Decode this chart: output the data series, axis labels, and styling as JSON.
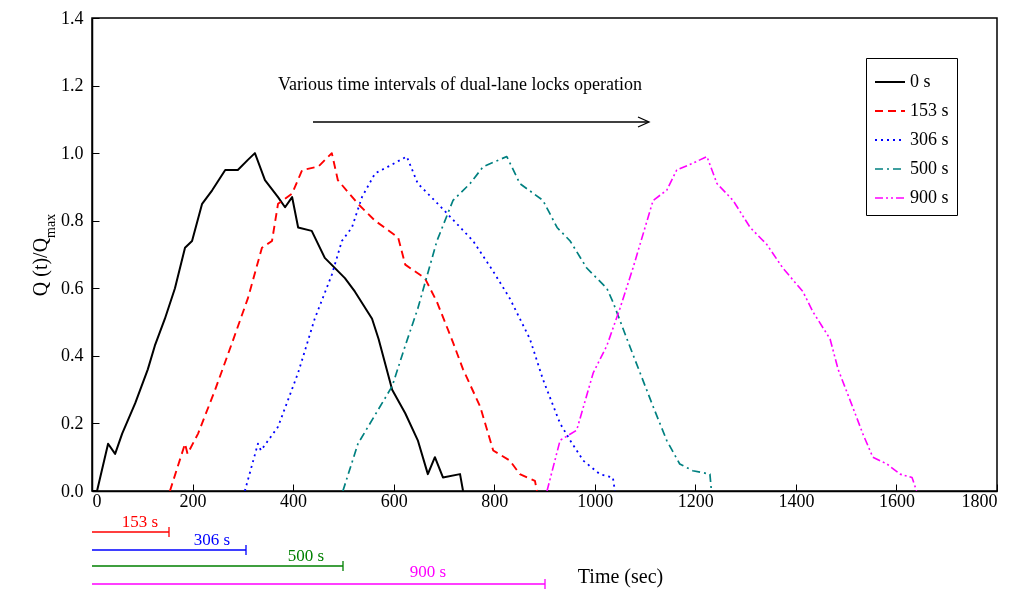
{
  "chart_data": {
    "type": "line",
    "xlabel": "Time (sec)",
    "ylabel": "Q (t)/Q$_{max}$",
    "xlim": [
      0,
      1800
    ],
    "xticks": [
      0,
      200,
      400,
      600,
      800,
      1000,
      1200,
      1400,
      1600,
      1800
    ],
    "ylim": [
      0,
      1.4
    ],
    "yticks": [
      {
        "value": 0,
        "label": "0.0"
      },
      0.2,
      0.4,
      0.6,
      0.8,
      {
        "value": 1,
        "label": "1.0"
      },
      1.2,
      1.4
    ],
    "legend": "top right",
    "annotations": [
      "Various time intervals of dual-lane locks operation",
      "153 s",
      "306 s",
      "500 s",
      "900 s"
    ],
    "series": [
      {
        "name": "0 s",
        "color": "#000000",
        "line_style": "solid",
        "x": [
          0,
          10,
          32,
          46,
          60,
          86,
          111,
          125,
          145,
          165,
          185,
          199,
          219,
          239,
          265,
          290,
          310,
          324,
          344,
          370,
          384,
          398,
          410,
          437,
          463,
          503,
          523,
          557,
          570,
          597,
          623,
          648,
          668,
          682,
          698,
          732,
          738
        ],
        "values": [
          0,
          0,
          0.14,
          0.11,
          0.17,
          0.26,
          0.36,
          0.43,
          0.51,
          0.6,
          0.72,
          0.74,
          0.85,
          0.89,
          0.95,
          0.95,
          0.98,
          1.0,
          0.92,
          0.87,
          0.84,
          0.87,
          0.78,
          0.77,
          0.69,
          0.63,
          0.59,
          0.51,
          0.45,
          0.3,
          0.23,
          0.15,
          0.05,
          0.1,
          0.04,
          0.05,
          0
        ]
      },
      {
        "name": "153 s",
        "color": "#ff0000",
        "line_style": "dashed",
        "x": [
          155,
          185,
          190,
          211,
          245,
          279,
          310,
          338,
          358,
          370,
          398,
          418,
          450,
          477,
          489,
          529,
          563,
          609,
          623,
          662,
          686,
          718,
          738,
          772,
          798,
          831,
          851,
          881,
          885
        ],
        "values": [
          0,
          0.14,
          0.11,
          0.17,
          0.3,
          0.44,
          0.57,
          0.72,
          0.74,
          0.85,
          0.88,
          0.95,
          0.96,
          1.0,
          0.92,
          0.85,
          0.8,
          0.75,
          0.67,
          0.63,
          0.56,
          0.44,
          0.36,
          0.25,
          0.12,
          0.09,
          0.05,
          0.03,
          0
        ]
      },
      {
        "name": "306 s",
        "color": "#0000ff",
        "line_style": "dotted",
        "x": [
          304,
          330,
          336,
          370,
          410,
          443,
          477,
          497,
          517,
          537,
          563,
          589,
          626,
          648,
          688,
          758,
          798,
          831,
          871,
          897,
          931,
          951,
          977,
          1010,
          1036,
          1040
        ],
        "values": [
          0,
          0.14,
          0.12,
          0.19,
          0.35,
          0.51,
          0.64,
          0.74,
          0.78,
          0.87,
          0.94,
          0.96,
          0.99,
          0.91,
          0.85,
          0.74,
          0.65,
          0.57,
          0.45,
          0.33,
          0.2,
          0.15,
          0.09,
          0.05,
          0.04,
          0
        ]
      },
      {
        "name": "500 s",
        "color": "#008080",
        "line_style": "dashdot",
        "x": [
          499,
          529,
          597,
          623,
          648,
          686,
          718,
          752,
          778,
          825,
          851,
          897,
          925,
          951,
          984,
          1024,
          1036,
          1064,
          1090,
          1116,
          1143,
          1169,
          1195,
          1229,
          1232
        ],
        "values": [
          0,
          0.14,
          0.31,
          0.43,
          0.54,
          0.74,
          0.86,
          0.91,
          0.96,
          0.99,
          0.91,
          0.86,
          0.78,
          0.74,
          0.66,
          0.6,
          0.56,
          0.45,
          0.35,
          0.25,
          0.15,
          0.08,
          0.06,
          0.05,
          0
        ]
      },
      {
        "name": "900 s",
        "color": "#ff00ff",
        "line_style": "dashdotdot",
        "x": [
          905,
          931,
          964,
          997,
          1024,
          1050,
          1076,
          1090,
          1116,
          1143,
          1163,
          1195,
          1223,
          1243,
          1275,
          1309,
          1342,
          1374,
          1414,
          1434,
          1468,
          1484,
          1510,
          1533,
          1553,
          1581,
          1607,
          1631,
          1640
        ],
        "values": [
          0,
          0.15,
          0.18,
          0.35,
          0.43,
          0.54,
          0.66,
          0.73,
          0.86,
          0.89,
          0.95,
          0.97,
          0.99,
          0.91,
          0.86,
          0.78,
          0.73,
          0.66,
          0.59,
          0.53,
          0.45,
          0.36,
          0.26,
          0.17,
          0.1,
          0.08,
          0.05,
          0.04,
          0
        ]
      }
    ]
  }
}
